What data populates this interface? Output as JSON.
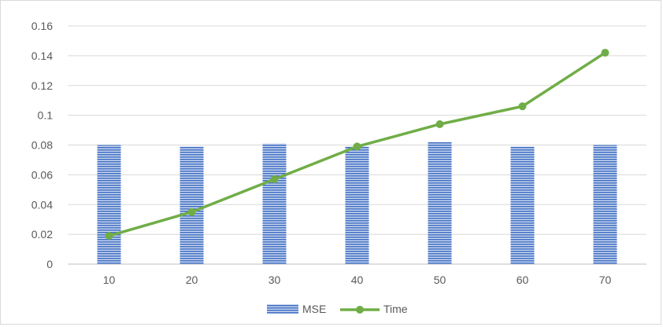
{
  "chart_data": {
    "type": "bar",
    "categories": [
      "10",
      "20",
      "30",
      "40",
      "50",
      "60",
      "70"
    ],
    "series": [
      {
        "name": "MSE",
        "type": "bar",
        "values": [
          0.08,
          0.079,
          0.081,
          0.079,
          0.082,
          0.079,
          0.08
        ],
        "color": "#4472c4"
      },
      {
        "name": "Time",
        "type": "line",
        "values": [
          0.019,
          0.035,
          0.057,
          0.079,
          0.094,
          0.106,
          0.142
        ],
        "color": "#70ad47"
      }
    ],
    "yticks": [
      "0",
      "0.02",
      "0.04",
      "0.06",
      "0.08",
      "0.1",
      "0.12",
      "0.14",
      "0.16"
    ],
    "ylim": [
      0,
      0.16
    ],
    "title": "",
    "xlabel": "",
    "ylabel": "",
    "grid": true,
    "legend_position": "bottom"
  },
  "legend": {
    "mse_label": "MSE",
    "time_label": "Time"
  }
}
